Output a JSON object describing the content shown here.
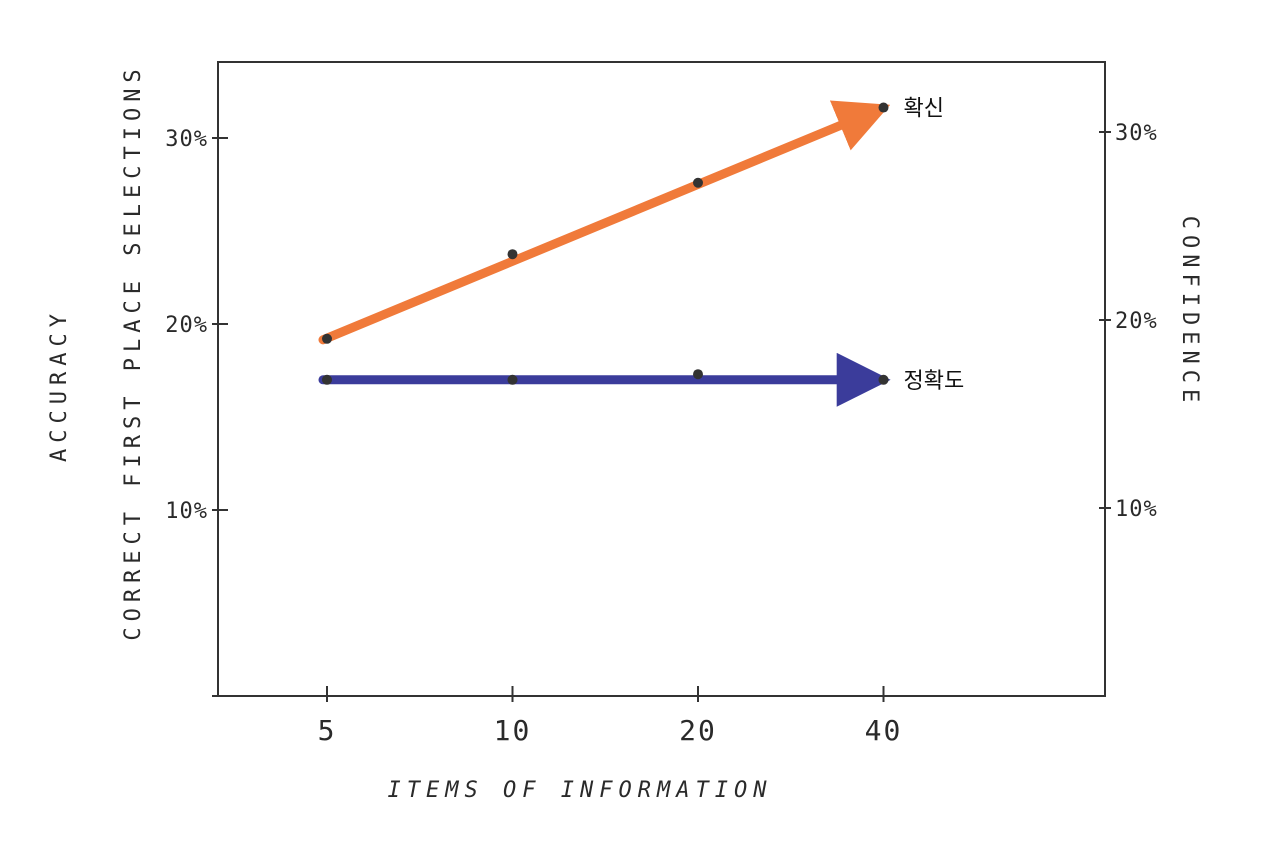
{
  "chart_data": {
    "type": "line",
    "title": "",
    "x": [
      5,
      10,
      20,
      40
    ],
    "x_scale": "log2",
    "xlabel": "ITEMS OF INFORMATION",
    "ylabel_left_line1": "ACCURACY",
    "ylabel_left_line2": "CORRECT FIRST PLACE SELECTIONS",
    "ylabel_right": "CONFIDENCE",
    "ylim": [
      0,
      30
    ],
    "yticks_left": [
      {
        "value": 10,
        "label": "10%"
      },
      {
        "value": 20,
        "label": "20%"
      },
      {
        "value": 30,
        "label": "30%"
      }
    ],
    "yticks_right": [
      {
        "value": 10,
        "label": "10%"
      },
      {
        "value": 20,
        "label": "20%"
      },
      {
        "value": 30,
        "label": "30%"
      }
    ],
    "xticks": [
      {
        "value": 5,
        "label": "5"
      },
      {
        "value": 10,
        "label": "10"
      },
      {
        "value": 20,
        "label": "20"
      },
      {
        "value": 40,
        "label": "40"
      }
    ],
    "grid": false,
    "series": [
      {
        "name": "확신",
        "axis": "right",
        "color": "#F07A3A",
        "values": [
          19,
          23.5,
          27.3,
          31.3
        ]
      },
      {
        "name": "정확도",
        "axis": "left",
        "color": "#3B3C9B",
        "values": [
          17,
          17,
          17.3,
          17
        ]
      }
    ]
  }
}
